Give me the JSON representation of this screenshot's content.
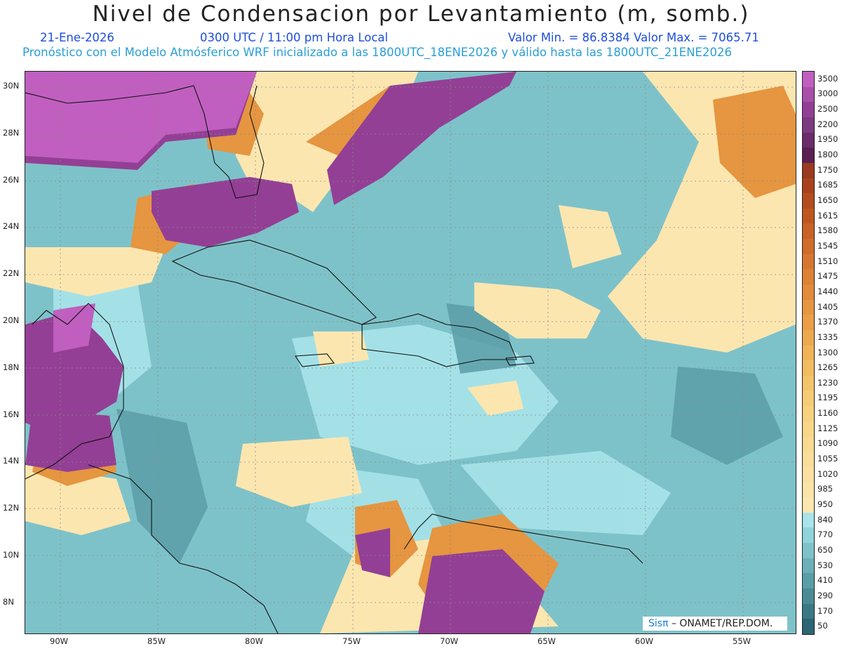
{
  "header": {
    "title": "Nivel de Condensacion por Levantamiento (m, somb.)",
    "date": "21-Ene-2026",
    "time": "0300 UTC / 11:00 pm Hora Local",
    "stats": "Valor Min. = 86.8384  Valor Max. = 7065.71",
    "forecast": "Pronóstico con el Modelo Atmósferico WRF inicializado a las 1800UTC_18ENE2026 y válido hasta las  1800UTC_21ENE2026"
  },
  "map": {
    "lat_labels": [
      "30N",
      "28N",
      "26N",
      "24N",
      "22N",
      "20N",
      "18N",
      "16N",
      "14N",
      "12N",
      "10N",
      "8N"
    ],
    "lon_labels": [
      "90W",
      "85W",
      "80W",
      "75W",
      "70W",
      "65W",
      "60W",
      "55W"
    ],
    "credit_brand": "Sisπ",
    "credit_text": "– ONAMET/REP.DOM."
  },
  "legend": {
    "labels": [
      "3500",
      "3000",
      "2500",
      "2200",
      "1950",
      "1800",
      "1750",
      "1685",
      "1650",
      "1615",
      "1580",
      "1545",
      "1510",
      "1475",
      "1440",
      "1405",
      "1370",
      "1335",
      "1300",
      "1265",
      "1230",
      "1195",
      "1160",
      "1125",
      "1090",
      "1055",
      "1020",
      "985",
      "950",
      "840",
      "770",
      "650",
      "530",
      "410",
      "290",
      "170",
      "50"
    ],
    "colors": [
      "#c05fbf",
      "#a94fa9",
      "#933f95",
      "#7c3a80",
      "#6a2c6a",
      "#5a1f53",
      "#9a3a20",
      "#a8421c",
      "#b44c1d",
      "#bf5620",
      "#c86226",
      "#d06c2b",
      "#d77630",
      "#dd8135",
      "#e28b3a",
      "#e69540",
      "#ea9f47",
      "#eda94f",
      "#f0b357",
      "#f2bc60",
      "#f4c46a",
      "#f6cb74",
      "#f7d17e",
      "#f8d688",
      "#f9da91",
      "#fadd99",
      "#fbe0a1",
      "#fbe3a8",
      "#fce6b0",
      "#a8e4ea",
      "#8fd3db",
      "#7ec2c9",
      "#6bb0b8",
      "#5a9ea7",
      "#4a8b96",
      "#3b7885",
      "#2c6574"
    ]
  }
}
